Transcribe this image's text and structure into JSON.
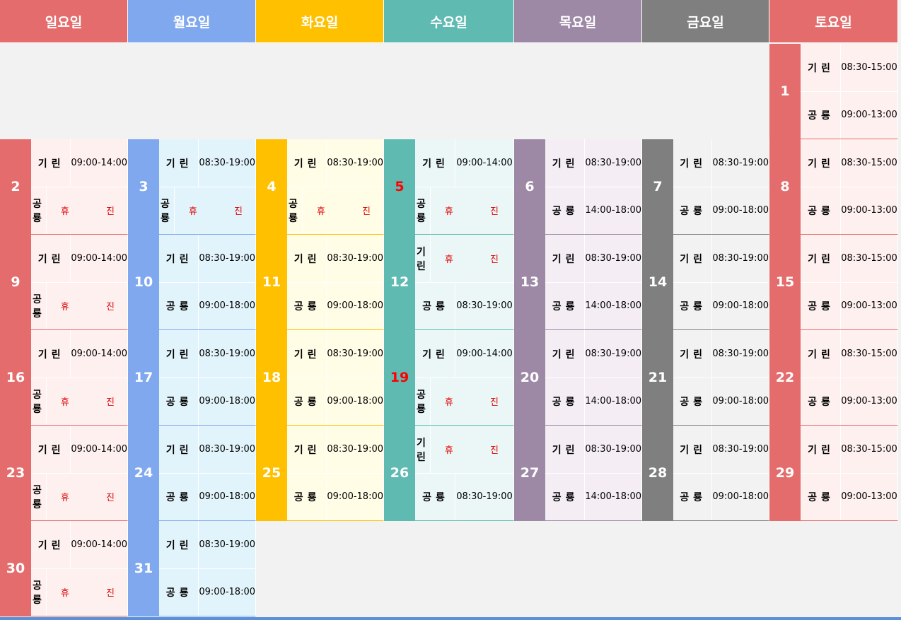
{
  "calendar": {
    "weekdays": [
      {
        "label": "일요일",
        "color": "#e46c6c",
        "bg": "#fff0f0"
      },
      {
        "label": "월요일",
        "color": "#7fa8ef",
        "bg": "#e2f4fb"
      },
      {
        "label": "화요일",
        "color": "#ffc000",
        "bg": "#fffde5"
      },
      {
        "label": "수요일",
        "color": "#5fbab2",
        "bg": "#eaf7f6"
      },
      {
        "label": "목요일",
        "color": "#9d88a5",
        "bg": "#f4eef4"
      },
      {
        "label": "금요일",
        "color": "#7f7f7f",
        "bg": "#f2f2f2"
      },
      {
        "label": "토요일",
        "color": "#e46c6c",
        "bg": "#fff0f0"
      }
    ],
    "pharmacy_1": "기린",
    "pharmacy_2": "공룡",
    "closed_label": "휴 진",
    "days": [
      {
        "day": "1",
        "week": 0,
        "col": 6,
        "red": false,
        "t1": "08:30-15:00",
        "t2": "09:00-13:00"
      },
      {
        "day": "2",
        "week": 1,
        "col": 0,
        "red": false,
        "t1": "09:00-14:00",
        "t2": "off"
      },
      {
        "day": "3",
        "week": 1,
        "col": 1,
        "red": false,
        "t1": "08:30-19:00",
        "t2": "off"
      },
      {
        "day": "4",
        "week": 1,
        "col": 2,
        "red": false,
        "t1": "08:30-19:00",
        "t2": "off"
      },
      {
        "day": "5",
        "week": 1,
        "col": 3,
        "red": true,
        "t1": "09:00-14:00",
        "t2": "off"
      },
      {
        "day": "6",
        "week": 1,
        "col": 4,
        "red": false,
        "t1": "08:30-19:00",
        "t2": "14:00-18:00"
      },
      {
        "day": "7",
        "week": 1,
        "col": 5,
        "red": false,
        "t1": "08:30-19:00",
        "t2": "09:00-18:00"
      },
      {
        "day": "8",
        "week": 1,
        "col": 6,
        "red": false,
        "t1": "08:30-15:00",
        "t2": "09:00-13:00"
      },
      {
        "day": "9",
        "week": 2,
        "col": 0,
        "red": false,
        "t1": "09:00-14:00",
        "t2": "off"
      },
      {
        "day": "10",
        "week": 2,
        "col": 1,
        "red": false,
        "t1": "08:30-19:00",
        "t2": "09:00-18:00"
      },
      {
        "day": "11",
        "week": 2,
        "col": 2,
        "red": false,
        "t1": "08:30-19:00",
        "t2": "09:00-18:00"
      },
      {
        "day": "12",
        "week": 2,
        "col": 3,
        "red": false,
        "t1": "off",
        "t2": "08:30-19:00"
      },
      {
        "day": "13",
        "week": 2,
        "col": 4,
        "red": false,
        "t1": "08:30-19:00",
        "t2": "14:00-18:00"
      },
      {
        "day": "14",
        "week": 2,
        "col": 5,
        "red": false,
        "t1": "08:30-19:00",
        "t2": "09:00-18:00"
      },
      {
        "day": "15",
        "week": 2,
        "col": 6,
        "red": false,
        "t1": "08:30-15:00",
        "t2": "09:00-13:00"
      },
      {
        "day": "16",
        "week": 3,
        "col": 0,
        "red": false,
        "t1": "09:00-14:00",
        "t2": "off"
      },
      {
        "day": "17",
        "week": 3,
        "col": 1,
        "red": false,
        "t1": "08:30-19:00",
        "t2": "09:00-18:00"
      },
      {
        "day": "18",
        "week": 3,
        "col": 2,
        "red": false,
        "t1": "08:30-19:00",
        "t2": "09:00-18:00"
      },
      {
        "day": "19",
        "week": 3,
        "col": 3,
        "red": true,
        "t1": "09:00-14:00",
        "t2": "off"
      },
      {
        "day": "20",
        "week": 3,
        "col": 4,
        "red": false,
        "t1": "08:30-19:00",
        "t2": "14:00-18:00"
      },
      {
        "day": "21",
        "week": 3,
        "col": 5,
        "red": false,
        "t1": "08:30-19:00",
        "t2": "09:00-18:00"
      },
      {
        "day": "22",
        "week": 3,
        "col": 6,
        "red": false,
        "t1": "08:30-15:00",
        "t2": "09:00-13:00"
      },
      {
        "day": "23",
        "week": 4,
        "col": 0,
        "red": false,
        "t1": "09:00-14:00",
        "t2": "off"
      },
      {
        "day": "24",
        "week": 4,
        "col": 1,
        "red": false,
        "t1": "08:30-19:00",
        "t2": "09:00-18:00"
      },
      {
        "day": "25",
        "week": 4,
        "col": 2,
        "red": false,
        "t1": "08:30-19:00",
        "t2": "09:00-18:00"
      },
      {
        "day": "26",
        "week": 4,
        "col": 3,
        "red": false,
        "t1": "off",
        "t2": "08:30-19:00"
      },
      {
        "day": "27",
        "week": 4,
        "col": 4,
        "red": false,
        "t1": "08:30-19:00",
        "t2": "14:00-18:00"
      },
      {
        "day": "28",
        "week": 4,
        "col": 5,
        "red": false,
        "t1": "08:30-19:00",
        "t2": "09:00-18:00"
      },
      {
        "day": "29",
        "week": 4,
        "col": 6,
        "red": false,
        "t1": "08:30-15:00",
        "t2": "09:00-13:00"
      },
      {
        "day": "30",
        "week": 5,
        "col": 0,
        "red": false,
        "t1": "09:00-14:00",
        "t2": "off"
      },
      {
        "day": "31",
        "week": 5,
        "col": 1,
        "red": false,
        "t1": "08:30-19:00",
        "t2": "09:00-18:00"
      }
    ]
  }
}
